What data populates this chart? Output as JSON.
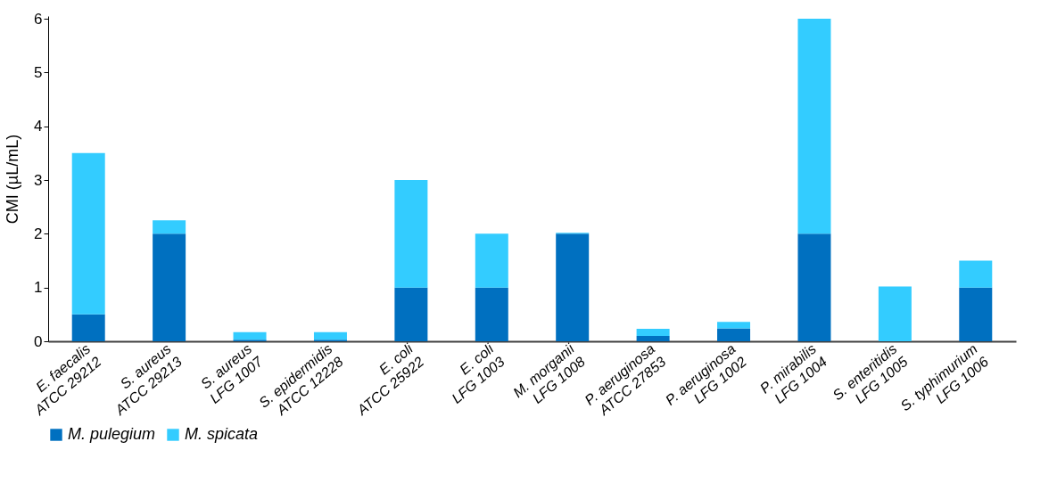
{
  "chart_data": {
    "type": "bar",
    "stacked": true,
    "ylabel": "CMI (µL/mL)",
    "categories": [
      "E. faecalis\nATCC 29212",
      "S. aureus\nATCC 29213",
      "S. aureus\nLFG 1007",
      "S. epidermidis\nATCC 12228",
      "E. coli\nATCC 25922",
      "E. coli\nLFG 1003",
      "M. morganii\nLFG 1008",
      "P. aeruginosa\nATCC 27853",
      "P. aeruginosa\nLFG 1002",
      "P. mirabilis\nLFG 1004",
      "S. enteritidis\nLFG 1005",
      "S. typhimurium\nLFG 1006"
    ],
    "series": [
      {
        "name": "M. pulegium",
        "color": "#0070c0",
        "values": [
          0.5,
          2,
          0.03,
          0.03,
          1,
          1,
          2,
          0.1,
          0.24,
          2,
          0,
          1
        ]
      },
      {
        "name": "M. spicata",
        "color": "#33ccff",
        "values": [
          3,
          0.25,
          0.14,
          0.14,
          2,
          1,
          0.02,
          0.13,
          0.12,
          4,
          1.02,
          0.5
        ]
      }
    ],
    "ylim": [
      0,
      6.05
    ],
    "yticks": [
      0,
      1,
      2,
      3,
      4,
      5,
      6
    ],
    "grid": false,
    "legend": "bottom"
  }
}
